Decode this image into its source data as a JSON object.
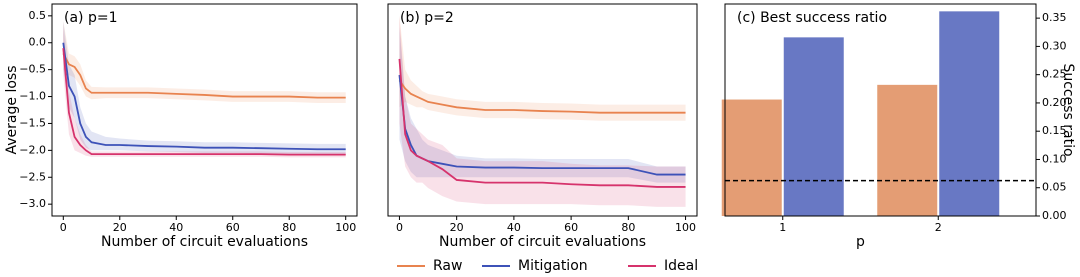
{
  "chart_data": [
    {
      "type": "line",
      "title": "(a) p=1",
      "xlabel": "Number of circuit evaluations",
      "ylabel": "Average loss",
      "x": [
        0,
        2,
        4,
        6,
        8,
        10,
        15,
        20,
        30,
        40,
        50,
        60,
        70,
        80,
        90,
        100
      ],
      "xlim": [
        -4,
        104
      ],
      "xticks": [
        0,
        20,
        40,
        60,
        80,
        100
      ],
      "ylim": [
        -3.22,
        0.72
      ],
      "yticks": [
        {
          "value": 0.5,
          "label": "0.5"
        },
        {
          "value": 0,
          "label": "0.0"
        },
        {
          "value": -0.5,
          "label": "−0.5"
        },
        {
          "value": -1,
          "label": "−1.0"
        },
        {
          "value": -1.5,
          "label": "−1.5"
        },
        {
          "value": -2,
          "label": "−2.0"
        },
        {
          "value": -2.5,
          "label": "−2.5"
        },
        {
          "value": -3,
          "label": "−3.0"
        }
      ],
      "series": [
        {
          "name": "Raw",
          "color": "#e8834f",
          "values": [
            -0.2,
            -0.4,
            -0.45,
            -0.6,
            -0.85,
            -0.93,
            -0.93,
            -0.93,
            -0.93,
            -0.95,
            -0.97,
            -1.0,
            -1.0,
            -1.0,
            -1.02,
            -1.02
          ],
          "lower": [
            -0.5,
            -0.6,
            -0.65,
            -0.8,
            -1.0,
            -1.05,
            -1.03,
            -1.03,
            -1.03,
            -1.05,
            -1.07,
            -1.1,
            -1.1,
            -1.1,
            -1.12,
            -1.12
          ],
          "upper": [
            0.4,
            -0.2,
            -0.25,
            -0.4,
            -0.7,
            -0.82,
            -0.83,
            -0.83,
            -0.83,
            -0.85,
            -0.87,
            -0.9,
            -0.9,
            -0.9,
            -0.92,
            -0.92
          ]
        },
        {
          "name": "Mitigation",
          "color": "#3d52b8",
          "values": [
            0.0,
            -0.8,
            -1.0,
            -1.5,
            -1.75,
            -1.85,
            -1.9,
            -1.9,
            -1.92,
            -1.93,
            -1.95,
            -1.95,
            -1.96,
            -1.97,
            -1.98,
            -1.98
          ],
          "lower": [
            -0.5,
            -1.2,
            -1.4,
            -1.8,
            -1.95,
            -2.0,
            -2.0,
            -2.0,
            -2.02,
            -2.03,
            -2.05,
            -2.05,
            -2.06,
            -2.07,
            -2.08,
            -2.08
          ],
          "upper": [
            0.4,
            -0.4,
            -0.6,
            -1.2,
            -1.5,
            -1.65,
            -1.75,
            -1.78,
            -1.82,
            -1.83,
            -1.85,
            -1.85,
            -1.86,
            -1.87,
            -1.88,
            -1.88
          ]
        },
        {
          "name": "Ideal",
          "color": "#d6336c",
          "values": [
            -0.1,
            -1.3,
            -1.75,
            -1.9,
            -2.0,
            -2.07,
            -2.07,
            -2.07,
            -2.07,
            -2.07,
            -2.07,
            -2.07,
            -2.07,
            -2.08,
            -2.08,
            -2.08
          ],
          "lower": [
            -0.6,
            -1.7,
            -2.0,
            -2.05,
            -2.1,
            -2.12,
            -2.12,
            -2.12,
            -2.12,
            -2.12,
            -2.12,
            -2.12,
            -2.12,
            -2.13,
            -2.13,
            -2.13
          ],
          "upper": [
            0.3,
            -0.9,
            -1.4,
            -1.7,
            -1.9,
            -2.02,
            -2.02,
            -2.02,
            -2.02,
            -2.02,
            -2.02,
            -2.02,
            -2.02,
            -2.03,
            -2.03,
            -2.03
          ]
        }
      ]
    },
    {
      "type": "line",
      "title": "(b) p=2",
      "xlabel": "Number of circuit evaluations",
      "x": [
        0,
        2,
        4,
        6,
        8,
        10,
        15,
        20,
        30,
        40,
        50,
        60,
        70,
        80,
        90,
        100
      ],
      "xlim": [
        -4,
        104
      ],
      "xticks": [
        0,
        20,
        40,
        60,
        80,
        100
      ],
      "ylim": [
        -3.22,
        0.72
      ],
      "series": [
        {
          "name": "Raw",
          "color": "#e8834f",
          "values": [
            -0.7,
            -0.85,
            -0.95,
            -1.0,
            -1.05,
            -1.1,
            -1.15,
            -1.2,
            -1.25,
            -1.25,
            -1.27,
            -1.28,
            -1.3,
            -1.3,
            -1.3,
            -1.3
          ],
          "lower": [
            -1.2,
            -1.1,
            -1.15,
            -1.2,
            -1.2,
            -1.25,
            -1.3,
            -1.35,
            -1.4,
            -1.4,
            -1.42,
            -1.43,
            -1.45,
            -1.45,
            -1.45,
            -1.45
          ],
          "upper": [
            0.5,
            -0.5,
            -0.7,
            -0.8,
            -0.9,
            -0.95,
            -1.0,
            -1.05,
            -1.1,
            -1.1,
            -1.12,
            -1.13,
            -1.15,
            -1.15,
            -1.15,
            -1.15
          ]
        },
        {
          "name": "Mitigation",
          "color": "#3d52b8",
          "values": [
            -0.6,
            -1.6,
            -1.9,
            -2.1,
            -2.15,
            -2.2,
            -2.25,
            -2.3,
            -2.32,
            -2.32,
            -2.33,
            -2.33,
            -2.33,
            -2.33,
            -2.45,
            -2.45
          ],
          "lower": [
            -1.8,
            -2.2,
            -2.4,
            -2.5,
            -2.5,
            -2.5,
            -2.5,
            -2.5,
            -2.5,
            -2.5,
            -2.5,
            -2.5,
            -2.5,
            -2.5,
            -2.6,
            -2.6
          ],
          "upper": [
            0.3,
            -1.0,
            -1.4,
            -1.6,
            -1.8,
            -1.9,
            -2.0,
            -2.1,
            -2.15,
            -2.15,
            -2.16,
            -2.16,
            -2.16,
            -2.16,
            -2.3,
            -2.3
          ]
        },
        {
          "name": "Ideal",
          "color": "#d6336c",
          "values": [
            -0.3,
            -1.7,
            -2.0,
            -2.1,
            -2.15,
            -2.2,
            -2.35,
            -2.55,
            -2.6,
            -2.6,
            -2.6,
            -2.63,
            -2.65,
            -2.65,
            -2.68,
            -2.68
          ],
          "lower": [
            -1.5,
            -2.3,
            -2.5,
            -2.6,
            -2.6,
            -2.7,
            -2.85,
            -2.95,
            -3.0,
            -3.0,
            -3.0,
            -3.0,
            -3.02,
            -3.02,
            -3.05,
            -3.05
          ],
          "upper": [
            0.5,
            -1.0,
            -1.5,
            -1.6,
            -1.7,
            -1.8,
            -1.9,
            -2.15,
            -2.2,
            -2.2,
            -2.2,
            -2.25,
            -2.28,
            -2.28,
            -2.3,
            -2.3
          ]
        }
      ]
    },
    {
      "type": "bar",
      "title": "(c) Best success ratio",
      "xlabel": "p",
      "ylabel": "Success ratio",
      "categories": [
        "1",
        "2"
      ],
      "ylim": [
        0,
        0.375
      ],
      "yticks": [
        {
          "value": 0,
          "label": "0.00"
        },
        {
          "value": 0.05,
          "label": "0.05"
        },
        {
          "value": 0.1,
          "label": "0.10"
        },
        {
          "value": 0.15,
          "label": "0.15"
        },
        {
          "value": 0.2,
          "label": "0.20"
        },
        {
          "value": 0.25,
          "label": "0.25"
        },
        {
          "value": 0.3,
          "label": "0.30"
        },
        {
          "value": 0.35,
          "label": "0.35"
        }
      ],
      "hline": 0.0625,
      "series": [
        {
          "name": "Raw",
          "color": "#e49d74",
          "values": [
            0.206,
            0.232
          ]
        },
        {
          "name": "Mitigation",
          "color": "#6878c4",
          "values": [
            0.316,
            0.362
          ]
        }
      ]
    }
  ]
}
